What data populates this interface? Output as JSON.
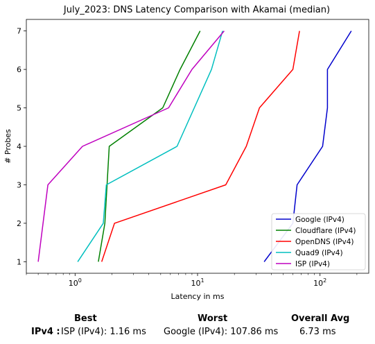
{
  "chart_data": {
    "type": "line",
    "title": "July_2023: DNS Latency Comparison with Akamai (median)",
    "xlabel": "Latency in ms",
    "ylabel": "# Probes",
    "xscale": "log",
    "xlim": [
      0.4,
      250
    ],
    "ylim": [
      0.7,
      7.3
    ],
    "x_ticks": [
      {
        "value": 1,
        "label": "10⁰",
        "base": "10",
        "exp": "0"
      },
      {
        "value": 10,
        "label": "10¹",
        "base": "10",
        "exp": "1"
      },
      {
        "value": 100,
        "label": "10²",
        "base": "10",
        "exp": "2"
      }
    ],
    "y_ticks": [
      1,
      2,
      3,
      4,
      5,
      6,
      7
    ],
    "legend_position": "bottom-right",
    "series": [
      {
        "name": "Google (IPv4)",
        "color": "#0000cc",
        "x": [
          35,
          60,
          65,
          105,
          115,
          115,
          180
        ],
        "y": [
          1,
          2,
          3,
          4,
          5,
          6,
          7
        ]
      },
      {
        "name": "Cloudflare (IPv4)",
        "color": "#008000",
        "x": [
          1.55,
          1.75,
          1.9,
          5.2,
          7.2,
          10.5
        ],
        "y": [
          1,
          2,
          4,
          5,
          6,
          7
        ]
      },
      {
        "name": "OpenDNS (IPv4)",
        "color": "#ff0000",
        "x": [
          1.65,
          2.1,
          17,
          25,
          32,
          60,
          68
        ],
        "y": [
          1,
          2,
          3,
          4,
          5,
          6,
          7
        ]
      },
      {
        "name": "Quad9 (IPv4)",
        "color": "#00bfbf",
        "x": [
          1.05,
          1.7,
          1.8,
          6.8,
          13,
          16
        ],
        "y": [
          1,
          2,
          3,
          4,
          6,
          7
        ]
      },
      {
        "name": "ISP (IPv4)",
        "color": "#bf00bf",
        "x": [
          0.5,
          0.6,
          1.15,
          5.8,
          9,
          16.5
        ],
        "y": [
          1,
          3,
          4,
          5,
          6,
          7
        ]
      }
    ]
  },
  "summary": {
    "best_header": "Best",
    "worst_header": "Worst",
    "avg_header": "Overall Avg",
    "row_label": "IPv4 :",
    "best_value": "ISP (IPv4): 1.16 ms",
    "worst_value": "Google (IPv4): 107.86 ms",
    "avg_value": "6.73 ms"
  }
}
